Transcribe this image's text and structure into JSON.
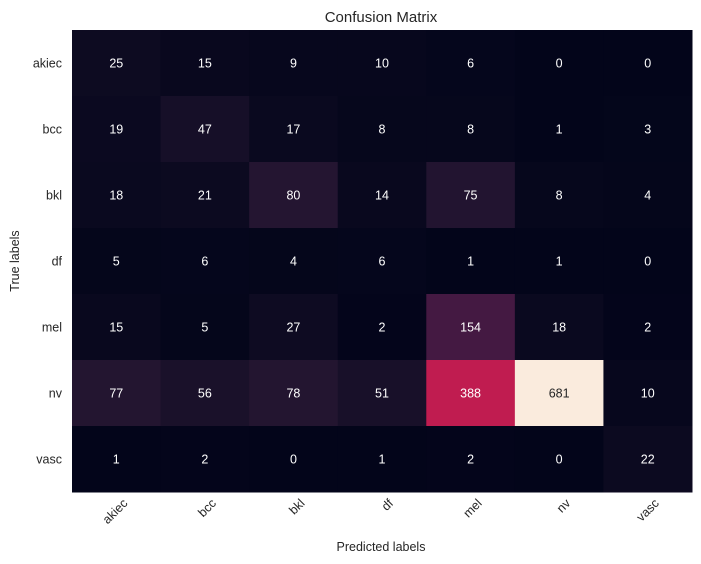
{
  "chart_data": {
    "type": "heatmap",
    "title": "Confusion Matrix",
    "xlabel": "Predicted labels",
    "ylabel": "True labels",
    "x_categories": [
      "akiec",
      "bcc",
      "bkl",
      "df",
      "mel",
      "nv",
      "vasc"
    ],
    "y_categories": [
      "akiec",
      "bcc",
      "bkl",
      "df",
      "mel",
      "nv",
      "vasc"
    ],
    "values": [
      [
        25,
        15,
        9,
        10,
        6,
        0,
        0
      ],
      [
        19,
        47,
        17,
        8,
        8,
        1,
        3
      ],
      [
        18,
        21,
        80,
        14,
        75,
        8,
        4
      ],
      [
        5,
        6,
        4,
        6,
        1,
        1,
        0
      ],
      [
        15,
        5,
        27,
        2,
        154,
        18,
        2
      ],
      [
        77,
        56,
        78,
        51,
        388,
        681,
        10
      ],
      [
        1,
        2,
        0,
        1,
        2,
        0,
        22
      ]
    ],
    "value_range": [
      0,
      681
    ],
    "colormap": "rocket",
    "colorbar": false,
    "x_tick_rotation": -45
  }
}
